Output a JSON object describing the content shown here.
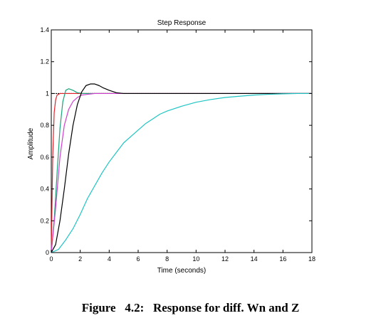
{
  "chart_data": {
    "type": "line",
    "title": "Step Response",
    "xlabel": "Time (seconds)",
    "ylabel": "Amplitude",
    "xlim": [
      0,
      18
    ],
    "ylim": [
      0,
      1.4
    ],
    "xticks": [
      0,
      2,
      4,
      6,
      8,
      10,
      12,
      14,
      16,
      18
    ],
    "yticks": [
      0,
      0.2,
      0.4,
      0.6,
      0.8,
      1,
      1.2,
      1.4
    ],
    "xtick_labels": [
      "0",
      "2",
      "4",
      "6",
      "8",
      "10",
      "12",
      "14",
      "16",
      "18"
    ],
    "ytick_labels": [
      "0",
      "0.2",
      "0.4",
      "0.6",
      "0.8",
      "1",
      "1.2",
      "1.4"
    ],
    "grid": false,
    "reference_line": {
      "y": 1,
      "color": "#000000",
      "dashed": true
    },
    "series": [
      {
        "color": "#e8202a",
        "x": [
          0,
          0.1,
          0.2,
          0.3,
          0.4,
          0.6,
          1,
          18
        ],
        "y": [
          0,
          0.6,
          0.88,
          0.96,
          0.99,
          1.0,
          1.0,
          1.0
        ]
      },
      {
        "color": "#1aa37a",
        "x": [
          0,
          0.2,
          0.4,
          0.6,
          0.8,
          1.0,
          1.2,
          1.5,
          1.8,
          2.2,
          2.6,
          3,
          18
        ],
        "y": [
          0,
          0.2,
          0.5,
          0.78,
          0.95,
          1.02,
          1.03,
          1.02,
          1.005,
          1.0,
          1.0,
          1.0,
          1.0
        ]
      },
      {
        "color": "#d040d0",
        "x": [
          0,
          0.3,
          0.6,
          0.9,
          1.2,
          1.5,
          1.8,
          2.1,
          2.5,
          3.0,
          3.5,
          18
        ],
        "y": [
          0,
          0.28,
          0.6,
          0.8,
          0.9,
          0.95,
          0.975,
          0.99,
          0.995,
          1.0,
          1.0,
          1.0
        ]
      },
      {
        "color": "#000000",
        "x": [
          0,
          0.3,
          0.6,
          0.9,
          1.2,
          1.5,
          1.8,
          2.1,
          2.4,
          2.7,
          3.0,
          3.3,
          3.6,
          4.0,
          4.5,
          5.0,
          5.5,
          18
        ],
        "y": [
          0,
          0.05,
          0.2,
          0.4,
          0.62,
          0.8,
          0.93,
          1.01,
          1.05,
          1.06,
          1.06,
          1.05,
          1.035,
          1.02,
          1.005,
          1.0,
          1.0,
          1.0
        ]
      },
      {
        "color": "#20c4c4",
        "x": [
          0,
          0.5,
          1,
          1.5,
          2,
          2.5,
          3,
          3.5,
          4,
          4.5,
          5,
          5.5,
          6,
          6.5,
          7,
          7.5,
          8,
          9,
          10,
          11,
          12,
          13,
          14,
          15,
          16,
          17,
          18
        ],
        "y": [
          0,
          0.02,
          0.08,
          0.15,
          0.24,
          0.34,
          0.42,
          0.5,
          0.57,
          0.63,
          0.69,
          0.73,
          0.77,
          0.81,
          0.84,
          0.87,
          0.89,
          0.92,
          0.945,
          0.962,
          0.975,
          0.983,
          0.99,
          0.995,
          0.998,
          1.0,
          1.0
        ]
      }
    ]
  },
  "caption": "Figure   4.2:   Response for diff. Wn and Z"
}
